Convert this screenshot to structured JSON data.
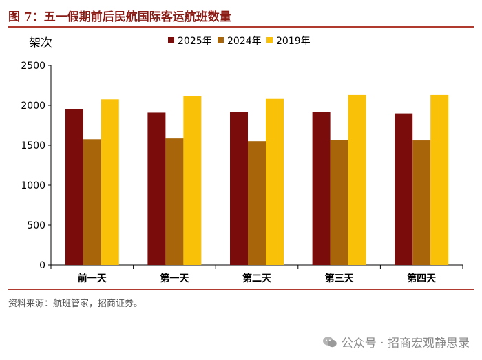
{
  "figure": {
    "title": "图 7：五一假期前后民航国际客运航班数量",
    "source": "资料来源：航班管家，招商证券。",
    "watermark": "公众号 · 招商宏观静思录"
  },
  "chart_data": {
    "type": "bar",
    "ylabel": "架次",
    "ylim": [
      0,
      2500
    ],
    "yticks": [
      0,
      500,
      1000,
      1500,
      2000,
      2500
    ],
    "ytick_labels": [
      "0",
      "500",
      "1000",
      "1500",
      "2000",
      "2500"
    ],
    "categories": [
      "前一天",
      "第一天",
      "第二天",
      "第三天",
      "第四天"
    ],
    "series": [
      {
        "name": "2025年",
        "color": "#7b0c0c",
        "values": [
          1950,
          1910,
          1915,
          1915,
          1900
        ]
      },
      {
        "name": "2024年",
        "color": "#a8650a",
        "values": [
          1575,
          1585,
          1550,
          1565,
          1560
        ]
      },
      {
        "name": "2019年",
        "color": "#f9c107",
        "values": [
          2075,
          2115,
          2080,
          2130,
          2130
        ]
      }
    ],
    "legend": "top-center",
    "grid": false
  }
}
